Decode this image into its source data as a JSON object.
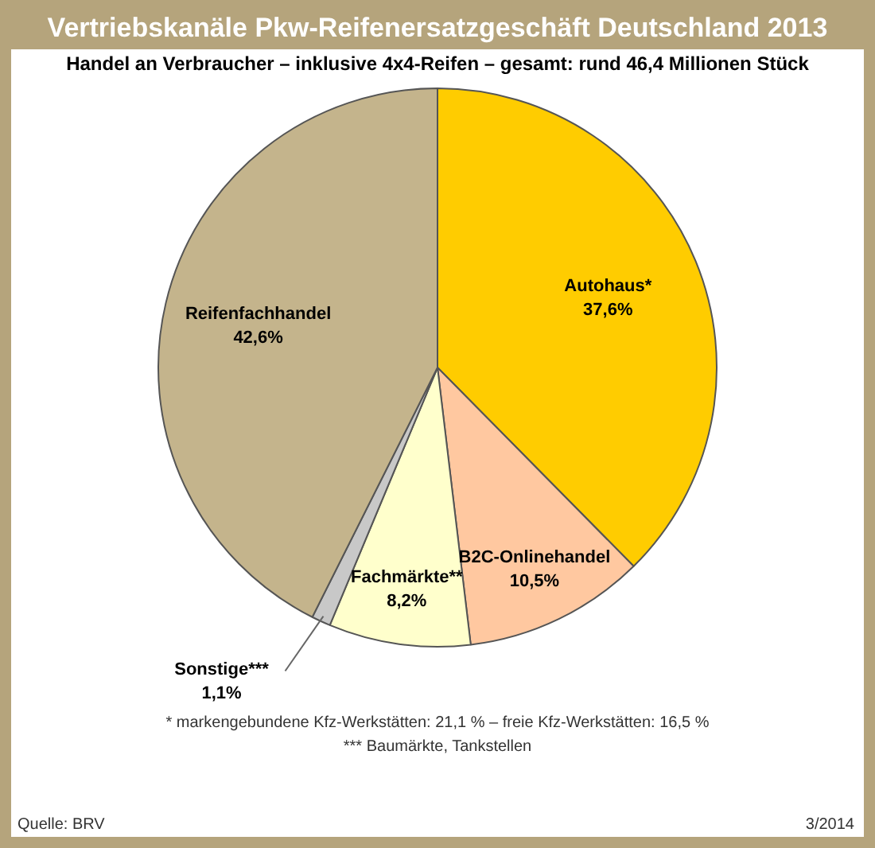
{
  "chart_data": {
    "type": "pie",
    "title": "Vertriebskanäle Pkw-Reifenersatzgeschäft Deutschland 2013",
    "subtitle": "Handel an Verbraucher – inklusive 4x4-Reifen – gesamt: rund 46,4 Millionen Stück",
    "categories": [
      "Autohaus*",
      "B2C-Onlinehandel",
      "Fachmärkte**",
      "Sonstige***",
      "Reifenfachhandel"
    ],
    "values": [
      37.6,
      10.5,
      8.2,
      1.1,
      42.6
    ],
    "value_labels": [
      "37,6%",
      "10,5%",
      "8,2%",
      "1,1%",
      "42,6%"
    ],
    "colors": [
      "#ffcc00",
      "#ffc8a0",
      "#ffffcc",
      "#c8c8c8",
      "#c4b48c"
    ],
    "legend": false,
    "annotations": [
      "* markengebundene Kfz-Werkstätten: 21,1 % – freie Kfz-Werkstätten: 16,5 %",
      "*** Baumärkte, Tankstellen",
      "Quelle: BRV",
      "3/2014"
    ]
  }
}
